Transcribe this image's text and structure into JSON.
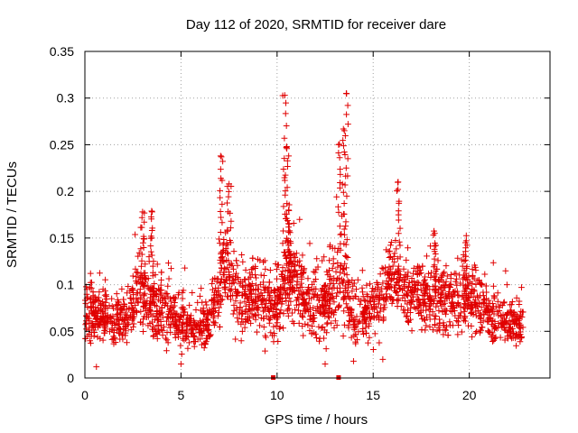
{
  "chart_data": {
    "type": "scatter",
    "title": "Day 112 of 2020, SRMTID for receiver dare",
    "xlabel": "GPS time / hours",
    "ylabel": "SRMTID / TECUs",
    "xlim": [
      0,
      24.2
    ],
    "ylim": [
      0,
      0.35
    ],
    "xticks": [
      0,
      5,
      10,
      15,
      20
    ],
    "yticks": [
      0,
      0.05,
      0.1,
      0.15,
      0.2,
      0.25,
      0.3,
      0.35
    ],
    "ytick_labels": [
      "0",
      "0.05",
      "0.1",
      "0.15",
      "0.2",
      "0.25",
      "0.3",
      "0.35"
    ],
    "grid": true,
    "marker": "+",
    "color": "#e00000",
    "series": [
      {
        "name": "SRMTID",
        "profile": [
          {
            "t": 0.0,
            "center": 0.07,
            "spread": 0.03
          },
          {
            "t": 1.0,
            "center": 0.065,
            "spread": 0.03
          },
          {
            "t": 2.0,
            "center": 0.062,
            "spread": 0.03
          },
          {
            "t": 2.8,
            "center": 0.09,
            "spread": 0.045
          },
          {
            "t": 3.5,
            "center": 0.085,
            "spread": 0.045
          },
          {
            "t": 4.5,
            "center": 0.065,
            "spread": 0.03
          },
          {
            "t": 5.5,
            "center": 0.055,
            "spread": 0.03
          },
          {
            "t": 6.5,
            "center": 0.06,
            "spread": 0.03
          },
          {
            "t": 7.2,
            "center": 0.12,
            "spread": 0.05
          },
          {
            "t": 8.0,
            "center": 0.085,
            "spread": 0.035
          },
          {
            "t": 9.0,
            "center": 0.085,
            "spread": 0.035
          },
          {
            "t": 10.0,
            "center": 0.075,
            "spread": 0.04
          },
          {
            "t": 10.5,
            "center": 0.11,
            "spread": 0.05
          },
          {
            "t": 11.5,
            "center": 0.085,
            "spread": 0.04
          },
          {
            "t": 12.5,
            "center": 0.075,
            "spread": 0.04
          },
          {
            "t": 13.3,
            "center": 0.11,
            "spread": 0.05
          },
          {
            "t": 14.0,
            "center": 0.06,
            "spread": 0.035
          },
          {
            "t": 15.0,
            "center": 0.08,
            "spread": 0.04
          },
          {
            "t": 16.0,
            "center": 0.105,
            "spread": 0.04
          },
          {
            "t": 17.0,
            "center": 0.09,
            "spread": 0.04
          },
          {
            "t": 18.0,
            "center": 0.085,
            "spread": 0.04
          },
          {
            "t": 19.0,
            "center": 0.08,
            "spread": 0.04
          },
          {
            "t": 20.0,
            "center": 0.09,
            "spread": 0.04
          },
          {
            "t": 21.0,
            "center": 0.065,
            "spread": 0.03
          },
          {
            "t": 22.0,
            "center": 0.06,
            "spread": 0.03
          },
          {
            "t": 22.7,
            "center": 0.055,
            "spread": 0.025
          }
        ],
        "peaks": [
          {
            "x": 3.0,
            "y": 0.178
          },
          {
            "x": 3.5,
            "y": 0.178
          },
          {
            "x": 7.1,
            "y": 0.237
          },
          {
            "x": 7.5,
            "y": 0.208
          },
          {
            "x": 10.4,
            "y": 0.303
          },
          {
            "x": 10.5,
            "y": 0.248
          },
          {
            "x": 10.6,
            "y": 0.18
          },
          {
            "x": 13.2,
            "y": 0.25
          },
          {
            "x": 13.6,
            "y": 0.305
          },
          {
            "x": 13.5,
            "y": 0.265
          },
          {
            "x": 16.3,
            "y": 0.21
          },
          {
            "x": 18.2,
            "y": 0.155
          },
          {
            "x": 19.8,
            "y": 0.145
          }
        ],
        "low_points": [
          {
            "x": 0.6,
            "y": 0.012
          },
          {
            "x": 5.0,
            "y": 0.015
          },
          {
            "x": 12.5,
            "y": 0.015
          },
          {
            "x": 15.5,
            "y": 0.02
          }
        ],
        "bottom_markers": [
          {
            "x": 9.8,
            "y": 0.0
          },
          {
            "x": 13.2,
            "y": 0.0
          }
        ],
        "x_range": [
          0.0,
          22.8
        ],
        "point_count": 2400
      }
    ]
  }
}
